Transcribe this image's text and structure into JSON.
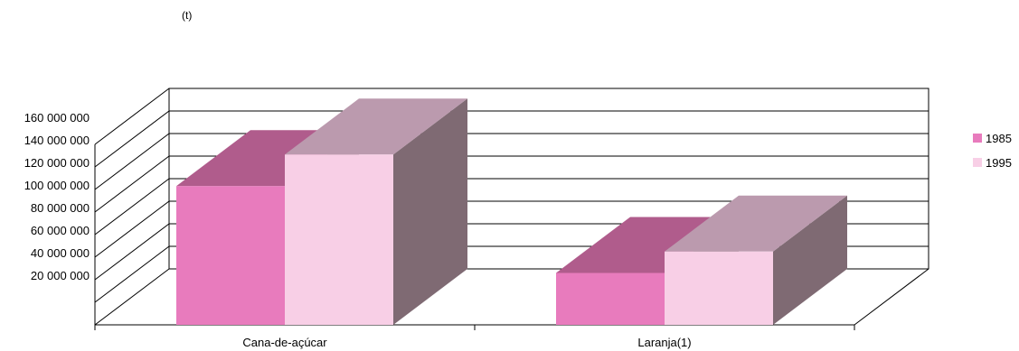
{
  "chart_data": {
    "type": "bar",
    "title": "",
    "unit_label": "(t)",
    "xlabel": "",
    "ylabel": "",
    "categories": [
      "Cana-de-açúcar",
      "Laranja(1)"
    ],
    "series": [
      {
        "name": "1985",
        "values": [
          123000000,
          46000000
        ]
      },
      {
        "name": "1995",
        "values": [
          151000000,
          65000000
        ]
      }
    ],
    "ylim": [
      0,
      160000000
    ],
    "ytick_step": 20000000,
    "ytick_labels": [
      "20 000 000",
      "40 000 000",
      "60 000 000",
      "80 000 000",
      "100 000 000",
      "120 000 000",
      "140 000 000",
      "160 000 000"
    ],
    "grid": true,
    "three_d": true,
    "legend_position": "right",
    "colors": {
      "1985": {
        "front": "#e87bbd",
        "top": "#b05c8c",
        "side": "#7f6a73"
      },
      "1995": {
        "front": "#f8cfe6",
        "top": "#bb9aae",
        "side": "#7f6a73"
      }
    }
  }
}
